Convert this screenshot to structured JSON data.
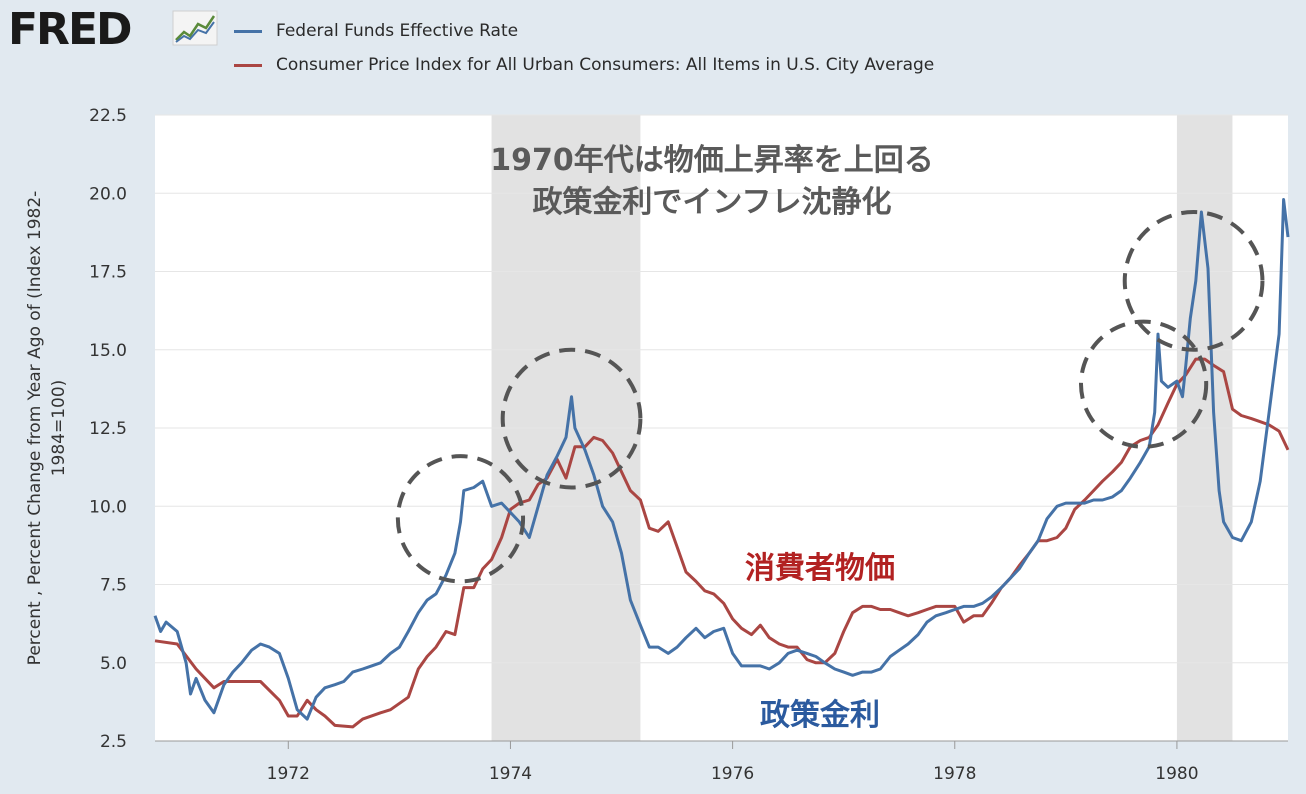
{
  "brand": {
    "name": "FRED",
    "icon": "line-chart-logo-icon"
  },
  "chart_data": {
    "type": "line",
    "ylabel": "Percent , Percent Change from Year Ago of (Index 1982-1984=100)",
    "ylim": [
      2.5,
      22.5
    ],
    "yticks": [
      "2.5",
      "5.0",
      "7.5",
      "10.0",
      "12.5",
      "15.0",
      "17.5",
      "20.0",
      "22.5"
    ],
    "xlim": [
      1970.8,
      1981.0
    ],
    "xticks": [
      "1972",
      "1974",
      "1976",
      "1978",
      "1980"
    ],
    "recessions": [
      [
        1973.83,
        1975.17
      ],
      [
        1980.0,
        1980.5
      ]
    ],
    "grid": true,
    "legend_position": "top",
    "series": [
      {
        "name": "Federal Funds Effective Rate",
        "color": "#4572a7",
        "points": [
          [
            1970.8,
            6.5
          ],
          [
            1970.85,
            6.0
          ],
          [
            1970.9,
            6.3
          ],
          [
            1971.0,
            6.0
          ],
          [
            1971.08,
            5.0
          ],
          [
            1971.12,
            4.0
          ],
          [
            1971.17,
            4.5
          ],
          [
            1971.25,
            3.8
          ],
          [
            1971.33,
            3.4
          ],
          [
            1971.42,
            4.3
          ],
          [
            1971.5,
            4.7
          ],
          [
            1971.58,
            5.0
          ],
          [
            1971.67,
            5.4
          ],
          [
            1971.75,
            5.6
          ],
          [
            1971.83,
            5.5
          ],
          [
            1971.92,
            5.3
          ],
          [
            1972.0,
            4.5
          ],
          [
            1972.08,
            3.5
          ],
          [
            1972.17,
            3.2
          ],
          [
            1972.25,
            3.9
          ],
          [
            1972.33,
            4.2
          ],
          [
            1972.42,
            4.3
          ],
          [
            1972.5,
            4.4
          ],
          [
            1972.58,
            4.7
          ],
          [
            1972.67,
            4.8
          ],
          [
            1972.75,
            4.9
          ],
          [
            1972.83,
            5.0
          ],
          [
            1972.92,
            5.3
          ],
          [
            1973.0,
            5.5
          ],
          [
            1973.08,
            6.0
          ],
          [
            1973.17,
            6.6
          ],
          [
            1973.25,
            7.0
          ],
          [
            1973.33,
            7.2
          ],
          [
            1973.42,
            7.8
          ],
          [
            1973.5,
            8.5
          ],
          [
            1973.55,
            9.5
          ],
          [
            1973.58,
            10.5
          ],
          [
            1973.67,
            10.6
          ],
          [
            1973.75,
            10.8
          ],
          [
            1973.83,
            10.0
          ],
          [
            1973.92,
            10.1
          ],
          [
            1974.0,
            9.8
          ],
          [
            1974.08,
            9.5
          ],
          [
            1974.17,
            9.0
          ],
          [
            1974.25,
            10.0
          ],
          [
            1974.33,
            11.0
          ],
          [
            1974.42,
            11.6
          ],
          [
            1974.5,
            12.2
          ],
          [
            1974.55,
            13.5
          ],
          [
            1974.58,
            12.5
          ],
          [
            1974.67,
            11.8
          ],
          [
            1974.75,
            11.0
          ],
          [
            1974.83,
            10.0
          ],
          [
            1974.92,
            9.5
          ],
          [
            1975.0,
            8.5
          ],
          [
            1975.08,
            7.0
          ],
          [
            1975.17,
            6.2
          ],
          [
            1975.25,
            5.5
          ],
          [
            1975.33,
            5.5
          ],
          [
            1975.42,
            5.3
          ],
          [
            1975.5,
            5.5
          ],
          [
            1975.58,
            5.8
          ],
          [
            1975.67,
            6.1
          ],
          [
            1975.75,
            5.8
          ],
          [
            1975.83,
            6.0
          ],
          [
            1975.92,
            6.1
          ],
          [
            1976.0,
            5.3
          ],
          [
            1976.08,
            4.9
          ],
          [
            1976.17,
            4.9
          ],
          [
            1976.25,
            4.9
          ],
          [
            1976.33,
            4.8
          ],
          [
            1976.42,
            5.0
          ],
          [
            1976.5,
            5.3
          ],
          [
            1976.58,
            5.4
          ],
          [
            1976.67,
            5.3
          ],
          [
            1976.75,
            5.2
          ],
          [
            1976.83,
            5.0
          ],
          [
            1976.92,
            4.8
          ],
          [
            1977.0,
            4.7
          ],
          [
            1977.08,
            4.6
          ],
          [
            1977.17,
            4.7
          ],
          [
            1977.25,
            4.7
          ],
          [
            1977.33,
            4.8
          ],
          [
            1977.42,
            5.2
          ],
          [
            1977.5,
            5.4
          ],
          [
            1977.58,
            5.6
          ],
          [
            1977.67,
            5.9
          ],
          [
            1977.75,
            6.3
          ],
          [
            1977.83,
            6.5
          ],
          [
            1977.92,
            6.6
          ],
          [
            1978.0,
            6.7
          ],
          [
            1978.08,
            6.8
          ],
          [
            1978.17,
            6.8
          ],
          [
            1978.25,
            6.9
          ],
          [
            1978.33,
            7.1
          ],
          [
            1978.42,
            7.4
          ],
          [
            1978.5,
            7.7
          ],
          [
            1978.58,
            8.0
          ],
          [
            1978.67,
            8.5
          ],
          [
            1978.75,
            8.9
          ],
          [
            1978.83,
            9.6
          ],
          [
            1978.92,
            10.0
          ],
          [
            1979.0,
            10.1
          ],
          [
            1979.08,
            10.1
          ],
          [
            1979.17,
            10.1
          ],
          [
            1979.25,
            10.2
          ],
          [
            1979.33,
            10.2
          ],
          [
            1979.42,
            10.3
          ],
          [
            1979.5,
            10.5
          ],
          [
            1979.58,
            10.9
          ],
          [
            1979.67,
            11.4
          ],
          [
            1979.75,
            11.9
          ],
          [
            1979.8,
            13.0
          ],
          [
            1979.83,
            15.5
          ],
          [
            1979.86,
            14.0
          ],
          [
            1979.92,
            13.8
          ],
          [
            1980.0,
            14.0
          ],
          [
            1980.05,
            13.5
          ],
          [
            1980.08,
            14.5
          ],
          [
            1980.12,
            16.0
          ],
          [
            1980.17,
            17.2
          ],
          [
            1980.22,
            19.4
          ],
          [
            1980.28,
            17.6
          ],
          [
            1980.33,
            13.0
          ],
          [
            1980.38,
            10.5
          ],
          [
            1980.42,
            9.5
          ],
          [
            1980.5,
            9.0
          ],
          [
            1980.58,
            8.9
          ],
          [
            1980.67,
            9.5
          ],
          [
            1980.75,
            10.8
          ],
          [
            1980.83,
            13.0
          ],
          [
            1980.92,
            15.5
          ],
          [
            1980.96,
            19.8
          ],
          [
            1981.0,
            18.6
          ]
        ]
      },
      {
        "name": "Consumer Price Index for All Urban Consumers: All Items in U.S. City Average",
        "color": "#aa4643",
        "points": [
          [
            1970.8,
            5.7
          ],
          [
            1971.0,
            5.6
          ],
          [
            1971.17,
            4.8
          ],
          [
            1971.33,
            4.2
          ],
          [
            1971.42,
            4.4
          ],
          [
            1971.58,
            4.4
          ],
          [
            1971.75,
            4.4
          ],
          [
            1971.92,
            3.8
          ],
          [
            1972.0,
            3.3
          ],
          [
            1972.08,
            3.3
          ],
          [
            1972.17,
            3.8
          ],
          [
            1972.25,
            3.5
          ],
          [
            1972.33,
            3.3
          ],
          [
            1972.42,
            3.0
          ],
          [
            1972.58,
            2.95
          ],
          [
            1972.67,
            3.2
          ],
          [
            1972.83,
            3.4
          ],
          [
            1972.92,
            3.5
          ],
          [
            1973.08,
            3.9
          ],
          [
            1973.17,
            4.8
          ],
          [
            1973.25,
            5.2
          ],
          [
            1973.33,
            5.5
          ],
          [
            1973.42,
            6.0
          ],
          [
            1973.5,
            5.9
          ],
          [
            1973.58,
            7.4
          ],
          [
            1973.67,
            7.4
          ],
          [
            1973.75,
            8.0
          ],
          [
            1973.83,
            8.3
          ],
          [
            1973.92,
            9.0
          ],
          [
            1974.0,
            9.9
          ],
          [
            1974.08,
            10.1
          ],
          [
            1974.17,
            10.2
          ],
          [
            1974.25,
            10.7
          ],
          [
            1974.33,
            10.9
          ],
          [
            1974.42,
            11.5
          ],
          [
            1974.5,
            10.9
          ],
          [
            1974.58,
            11.9
          ],
          [
            1974.67,
            11.9
          ],
          [
            1974.75,
            12.2
          ],
          [
            1974.83,
            12.1
          ],
          [
            1974.92,
            11.7
          ],
          [
            1975.0,
            11.1
          ],
          [
            1975.08,
            10.5
          ],
          [
            1975.17,
            10.2
          ],
          [
            1975.25,
            9.3
          ],
          [
            1975.33,
            9.2
          ],
          [
            1975.42,
            9.5
          ],
          [
            1975.5,
            8.7
          ],
          [
            1975.58,
            7.9
          ],
          [
            1975.67,
            7.6
          ],
          [
            1975.75,
            7.3
          ],
          [
            1975.83,
            7.2
          ],
          [
            1975.92,
            6.9
          ],
          [
            1976.0,
            6.4
          ],
          [
            1976.08,
            6.1
          ],
          [
            1976.17,
            5.9
          ],
          [
            1976.25,
            6.2
          ],
          [
            1976.33,
            5.8
          ],
          [
            1976.42,
            5.6
          ],
          [
            1976.5,
            5.5
          ],
          [
            1976.58,
            5.5
          ],
          [
            1976.67,
            5.1
          ],
          [
            1976.75,
            5.0
          ],
          [
            1976.83,
            5.0
          ],
          [
            1976.92,
            5.3
          ],
          [
            1977.0,
            6.0
          ],
          [
            1977.08,
            6.6
          ],
          [
            1977.17,
            6.8
          ],
          [
            1977.25,
            6.8
          ],
          [
            1977.33,
            6.7
          ],
          [
            1977.42,
            6.7
          ],
          [
            1977.5,
            6.6
          ],
          [
            1977.58,
            6.5
          ],
          [
            1977.67,
            6.6
          ],
          [
            1977.75,
            6.7
          ],
          [
            1977.83,
            6.8
          ],
          [
            1977.92,
            6.8
          ],
          [
            1978.0,
            6.8
          ],
          [
            1978.08,
            6.3
          ],
          [
            1978.17,
            6.5
          ],
          [
            1978.25,
            6.5
          ],
          [
            1978.33,
            6.9
          ],
          [
            1978.42,
            7.4
          ],
          [
            1978.5,
            7.7
          ],
          [
            1978.58,
            8.1
          ],
          [
            1978.67,
            8.5
          ],
          [
            1978.75,
            8.9
          ],
          [
            1978.83,
            8.9
          ],
          [
            1978.92,
            9.0
          ],
          [
            1979.0,
            9.3
          ],
          [
            1979.08,
            9.9
          ],
          [
            1979.17,
            10.2
          ],
          [
            1979.25,
            10.5
          ],
          [
            1979.33,
            10.8
          ],
          [
            1979.42,
            11.1
          ],
          [
            1979.5,
            11.4
          ],
          [
            1979.58,
            11.9
          ],
          [
            1979.67,
            12.1
          ],
          [
            1979.75,
            12.2
          ],
          [
            1979.83,
            12.6
          ],
          [
            1979.92,
            13.3
          ],
          [
            1980.0,
            13.9
          ],
          [
            1980.08,
            14.2
          ],
          [
            1980.17,
            14.7
          ],
          [
            1980.25,
            14.7
          ],
          [
            1980.33,
            14.5
          ],
          [
            1980.42,
            14.3
          ],
          [
            1980.5,
            13.1
          ],
          [
            1980.58,
            12.9
          ],
          [
            1980.67,
            12.8
          ],
          [
            1980.75,
            12.7
          ],
          [
            1980.83,
            12.6
          ],
          [
            1980.92,
            12.4
          ],
          [
            1981.0,
            11.8
          ]
        ]
      }
    ],
    "annotations": {
      "title_line1": "1970年代は物価上昇率を上回る",
      "title_line2": "政策金利でインフレ沈静化",
      "cpi_label": "消費者物価",
      "rate_label": "政策金利",
      "cpi_label_color": "#b22222",
      "rate_label_color": "#2b5a9e",
      "circles": [
        {
          "cx": 1973.55,
          "cy": 9.6,
          "r": 2.0
        },
        {
          "cx": 1974.55,
          "cy": 12.8,
          "r": 2.2
        },
        {
          "cx": 1979.7,
          "cy": 13.9,
          "r": 2.0
        },
        {
          "cx": 1980.15,
          "cy": 17.2,
          "r": 2.2
        }
      ]
    }
  }
}
